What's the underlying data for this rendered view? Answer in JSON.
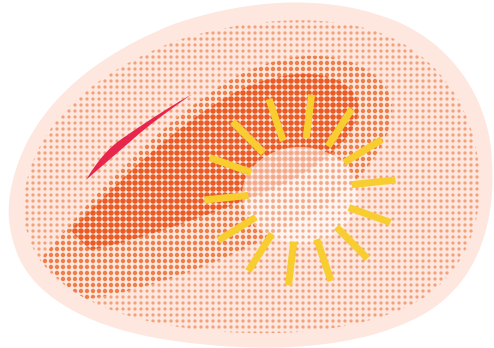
{
  "colors": {
    "background": "#ffffff",
    "sticker_border": "#fde7df",
    "dot_light": "#f2a17a",
    "dot_mid": "#ef7d47",
    "dot_dark": "#ea5a22",
    "streak": "#e8254a",
    "rays": "#f7cd2f"
  },
  "icons": {
    "blob": "halftone-blob-icon",
    "sun": "sun-burst-icon",
    "streak": "pink-streak-icon"
  }
}
